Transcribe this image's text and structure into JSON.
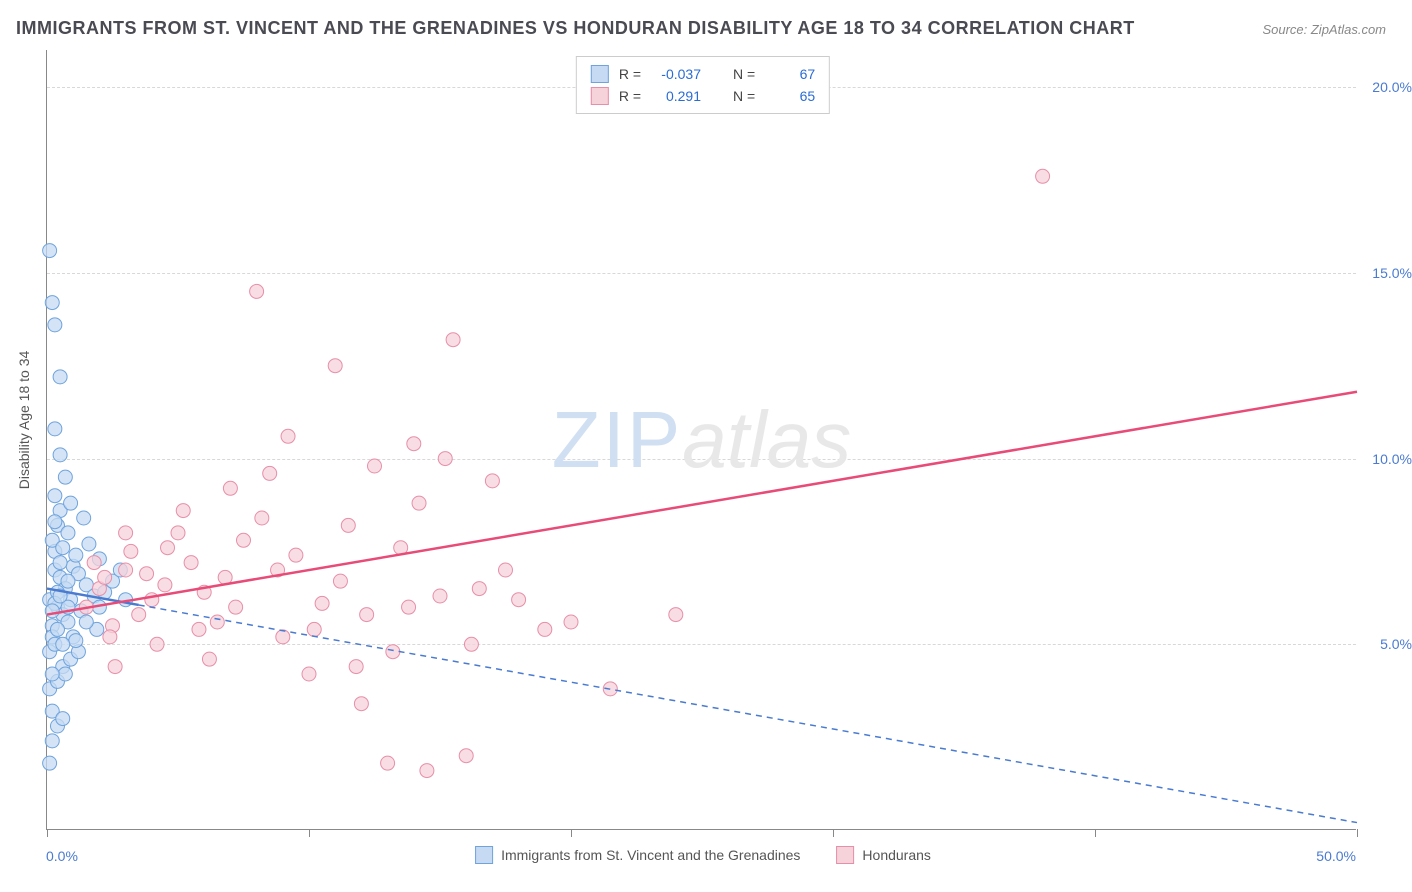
{
  "title": "IMMIGRANTS FROM ST. VINCENT AND THE GRENADINES VS HONDURAN DISABILITY AGE 18 TO 34 CORRELATION CHART",
  "source": "Source: ZipAtlas.com",
  "y_axis_label": "Disability Age 18 to 34",
  "watermark": {
    "zip": "ZIP",
    "atlas": "atlas"
  },
  "chart": {
    "type": "scatter-with-regression",
    "background_color": "#ffffff",
    "grid_color": "#d8d8d8",
    "axis_color": "#888888",
    "xlim": [
      0,
      50
    ],
    "ylim": [
      0,
      21
    ],
    "x_ticks": [
      0,
      10,
      20,
      30,
      40,
      50
    ],
    "x_start_label": "0.0%",
    "x_end_label": "50.0%",
    "y_ticks": [
      {
        "value": 5,
        "label": "5.0%"
      },
      {
        "value": 10,
        "label": "10.0%"
      },
      {
        "value": 15,
        "label": "15.0%"
      },
      {
        "value": 20,
        "label": "20.0%"
      }
    ],
    "series": [
      {
        "name": "Immigrants from St. Vincent and the Grenadines",
        "color_fill": "#c6dbf3",
        "color_stroke": "#6fa3dd",
        "reg_color": "#4a7bd0",
        "reg_solid_end_x": 3.5,
        "R": "-0.037",
        "N": "67",
        "regression": {
          "x1": 0,
          "y1": 6.5,
          "x2": 50,
          "y2": 0.2
        },
        "points": [
          [
            0.1,
            6.2
          ],
          [
            0.2,
            5.5
          ],
          [
            0.3,
            7.0
          ],
          [
            0.4,
            6.0
          ],
          [
            0.1,
            4.8
          ],
          [
            0.2,
            5.2
          ],
          [
            0.5,
            6.8
          ],
          [
            0.3,
            7.5
          ],
          [
            0.6,
            5.8
          ],
          [
            0.4,
            8.2
          ],
          [
            0.2,
            7.8
          ],
          [
            0.7,
            6.5
          ],
          [
            0.8,
            5.6
          ],
          [
            0.3,
            9.0
          ],
          [
            0.5,
            8.6
          ],
          [
            0.1,
            3.8
          ],
          [
            0.9,
            6.2
          ],
          [
            1.0,
            7.1
          ],
          [
            0.4,
            4.0
          ],
          [
            0.2,
            3.2
          ],
          [
            1.2,
            6.9
          ],
          [
            0.5,
            10.1
          ],
          [
            0.3,
            5.0
          ],
          [
            0.6,
            4.4
          ],
          [
            1.5,
            6.6
          ],
          [
            0.8,
            8.0
          ],
          [
            1.1,
            7.4
          ],
          [
            0.2,
            2.4
          ],
          [
            0.4,
            2.8
          ],
          [
            0.1,
            1.8
          ],
          [
            1.3,
            5.9
          ],
          [
            1.8,
            6.3
          ],
          [
            0.7,
            9.5
          ],
          [
            2.0,
            6.0
          ],
          [
            1.6,
            7.7
          ],
          [
            0.9,
            4.6
          ],
          [
            2.2,
            6.4
          ],
          [
            0.5,
            12.2
          ],
          [
            0.3,
            10.8
          ],
          [
            1.4,
            8.4
          ],
          [
            0.2,
            14.2
          ],
          [
            0.1,
            15.6
          ],
          [
            0.3,
            13.6
          ],
          [
            2.5,
            6.7
          ],
          [
            1.9,
            5.4
          ],
          [
            0.6,
            3.0
          ],
          [
            3.0,
            6.2
          ],
          [
            2.8,
            7.0
          ],
          [
            0.4,
            6.4
          ],
          [
            1.0,
            5.2
          ],
          [
            0.8,
            6.0
          ],
          [
            0.5,
            7.2
          ],
          [
            1.2,
            4.8
          ],
          [
            0.3,
            6.1
          ],
          [
            0.6,
            7.6
          ],
          [
            0.9,
            8.8
          ],
          [
            0.2,
            5.9
          ],
          [
            0.4,
            5.4
          ],
          [
            1.5,
            5.6
          ],
          [
            0.7,
            4.2
          ],
          [
            2.0,
            7.3
          ],
          [
            0.3,
            8.3
          ],
          [
            0.8,
            6.7
          ],
          [
            1.1,
            5.1
          ],
          [
            0.5,
            6.3
          ],
          [
            0.2,
            4.2
          ],
          [
            0.6,
            5.0
          ]
        ]
      },
      {
        "name": "Hondurans",
        "color_fill": "#f6d2db",
        "color_stroke": "#e78fa8",
        "reg_color": "#e84b77",
        "reg_solid_end_x": 50,
        "R": "0.291",
        "N": "65",
        "regression": {
          "x1": 0,
          "y1": 5.8,
          "x2": 50,
          "y2": 11.8
        },
        "points": [
          [
            1.5,
            6.0
          ],
          [
            2.0,
            6.5
          ],
          [
            2.5,
            5.5
          ],
          [
            3.0,
            7.0
          ],
          [
            2.2,
            6.8
          ],
          [
            3.5,
            5.8
          ],
          [
            4.0,
            6.2
          ],
          [
            3.2,
            7.5
          ],
          [
            4.5,
            6.6
          ],
          [
            5.0,
            8.0
          ],
          [
            4.2,
            5.0
          ],
          [
            5.5,
            7.2
          ],
          [
            6.0,
            6.4
          ],
          [
            5.2,
            8.6
          ],
          [
            6.5,
            5.6
          ],
          [
            7.0,
            9.2
          ],
          [
            6.2,
            4.6
          ],
          [
            7.5,
            7.8
          ],
          [
            8.0,
            14.5
          ],
          [
            7.2,
            6.0
          ],
          [
            8.5,
            9.6
          ],
          [
            9.0,
            5.2
          ],
          [
            8.2,
            8.4
          ],
          [
            9.5,
            7.4
          ],
          [
            10.0,
            4.2
          ],
          [
            9.2,
            10.6
          ],
          [
            10.5,
            6.1
          ],
          [
            11.0,
            12.5
          ],
          [
            10.2,
            5.4
          ],
          [
            11.5,
            8.2
          ],
          [
            12.0,
            3.4
          ],
          [
            11.2,
            6.7
          ],
          [
            12.5,
            9.8
          ],
          [
            13.0,
            1.8
          ],
          [
            12.2,
            5.8
          ],
          [
            13.5,
            7.6
          ],
          [
            14.0,
            10.4
          ],
          [
            13.2,
            4.8
          ],
          [
            14.5,
            1.6
          ],
          [
            15.0,
            6.3
          ],
          [
            14.2,
            8.8
          ],
          [
            15.5,
            13.2
          ],
          [
            16.0,
            2.0
          ],
          [
            15.2,
            10.0
          ],
          [
            16.5,
            6.5
          ],
          [
            17.0,
            9.4
          ],
          [
            16.2,
            5.0
          ],
          [
            17.5,
            7.0
          ],
          [
            18.0,
            6.2
          ],
          [
            19.0,
            5.4
          ],
          [
            20.0,
            5.6
          ],
          [
            21.5,
            3.8
          ],
          [
            24.0,
            5.8
          ],
          [
            38.0,
            17.6
          ],
          [
            1.8,
            7.2
          ],
          [
            2.4,
            5.2
          ],
          [
            3.8,
            6.9
          ],
          [
            4.6,
            7.6
          ],
          [
            5.8,
            5.4
          ],
          [
            6.8,
            6.8
          ],
          [
            8.8,
            7.0
          ],
          [
            11.8,
            4.4
          ],
          [
            13.8,
            6.0
          ],
          [
            3.0,
            8.0
          ],
          [
            2.6,
            4.4
          ]
        ]
      }
    ]
  },
  "legend_bottom": [
    {
      "label": "Immigrants from St. Vincent and the Grenadines",
      "fill": "#c6dbf3",
      "stroke": "#6fa3dd"
    },
    {
      "label": "Hondurans",
      "fill": "#f6d2db",
      "stroke": "#e78fa8"
    }
  ]
}
